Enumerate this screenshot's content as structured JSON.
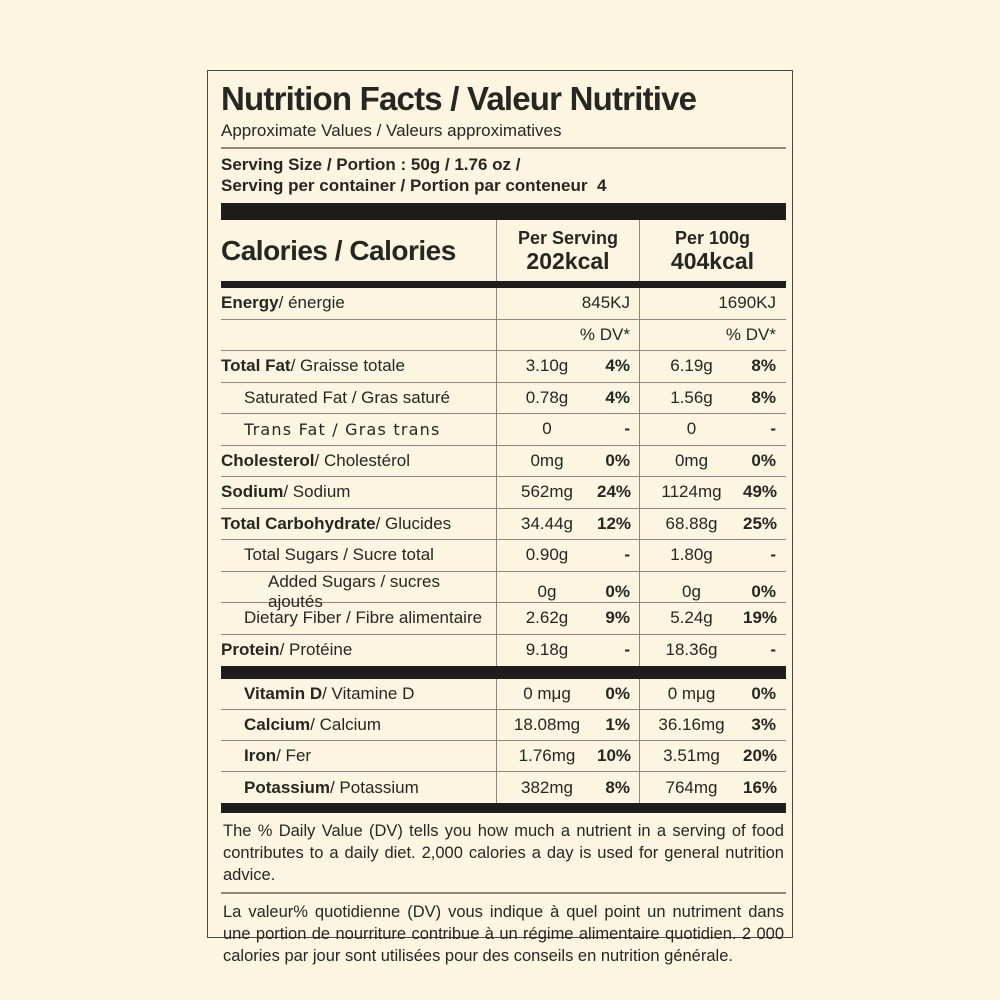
{
  "colors": {
    "background": "#fbf5e1",
    "text": "#272722",
    "bar": "#1e1d1b",
    "divider": "#8e897a"
  },
  "header": {
    "title": "Nutrition Facts / Valeur Nutritive",
    "subtitle": "Approximate Values / Valeurs approximatives",
    "serving_line1": "Serving Size / Portion : 50g / 1.76 oz /",
    "serving_line2": "Serving per container / Portion par conteneur  4"
  },
  "calories": {
    "label": "Calories / Calories",
    "per_serving_header": "Per Serving",
    "per_serving_value": "202kcal",
    "per_100g_header": "Per 100g",
    "per_100g_value": "404kcal"
  },
  "energy": {
    "name_b": "Energy",
    "name_r": " / énergie",
    "per_serving": "845KJ",
    "per_100g": "1690KJ"
  },
  "dv_header": "% DV*",
  "nutrients": [
    {
      "name_b": "Total Fat",
      "name_r": " / Graisse totale",
      "s_amt": "3.10g",
      "s_dv": "4%",
      "h_amt": "6.19g",
      "h_dv": "8%"
    },
    {
      "name_b": "",
      "name_r": "Saturated Fat / Gras saturé",
      "s_amt": "0.78g",
      "s_dv": "4%",
      "h_amt": "1.56g",
      "h_dv": "8%"
    },
    {
      "name_b": "",
      "name_r": "Trans Fat / Gras trans",
      "s_amt": "0",
      "s_dv": "-",
      "h_amt": "0",
      "h_dv": "-"
    },
    {
      "name_b": "Cholesterol",
      "name_r": " / Cholestérol",
      "s_amt": "0mg",
      "s_dv": "0%",
      "h_amt": "0mg",
      "h_dv": "0%"
    },
    {
      "name_b": "Sodium",
      "name_r": " / Sodium",
      "s_amt": "562mg",
      "s_dv": "24%",
      "h_amt": "1124mg",
      "h_dv": "49%"
    },
    {
      "name_b": "Total Carbohydrate",
      "name_r": " / Glucides",
      "s_amt": "34.44g",
      "s_dv": "12%",
      "h_amt": "68.88g",
      "h_dv": "25%"
    },
    {
      "name_b": "",
      "name_r": "Total Sugars / Sucre total",
      "s_amt": "0.90g",
      "s_dv": "-",
      "h_amt": "1.80g",
      "h_dv": "-"
    },
    {
      "name_b": "",
      "name_r": "Added Sugars / sucres ajoutés",
      "s_amt": "0g",
      "s_dv": "0%",
      "h_amt": "0g",
      "h_dv": "0%"
    },
    {
      "name_b": "",
      "name_r": "Dietary Fiber / Fibre alimentaire",
      "s_amt": "2.62g",
      "s_dv": "9%",
      "h_amt": "5.24g",
      "h_dv": "19%"
    },
    {
      "name_b": "Protein",
      "name_r": " / Protéine",
      "s_amt": "9.18g",
      "s_dv": "-",
      "h_amt": "18.36g",
      "h_dv": "-"
    }
  ],
  "minerals": [
    {
      "name_b": "Vitamin D",
      "name_r": " / Vitamine D",
      "s_amt": "0 mμg",
      "s_dv": "0%",
      "h_amt": "0 mμg",
      "h_dv": "0%"
    },
    {
      "name_b": "Calcium",
      "name_r": " / Calcium",
      "s_amt": "18.08mg",
      "s_dv": "1%",
      "h_amt": "36.16mg",
      "h_dv": "3%"
    },
    {
      "name_b": "Iron",
      "name_r": " / Fer",
      "s_amt": "1.76mg",
      "s_dv": "10%",
      "h_amt": "3.51mg",
      "h_dv": "20%"
    },
    {
      "name_b": "Potassium",
      "name_r": " / Potassium",
      "s_amt": "382mg",
      "s_dv": "8%",
      "h_amt": "764mg",
      "h_dv": "16%"
    }
  ],
  "footnotes": {
    "en": "The % Daily Value (DV) tells you how much a nutrient in a serving of food contributes to a daily diet. 2,000 calories a day is used for general nutrition advice.",
    "fr": "La valeur% quotidienne (DV) vous indique à quel point un nutriment dans une portion de nourriture contribue à un régime alimentaire quotidien. 2 000 calories par jour sont utilisées pour des conseils en nutrition générale."
  }
}
